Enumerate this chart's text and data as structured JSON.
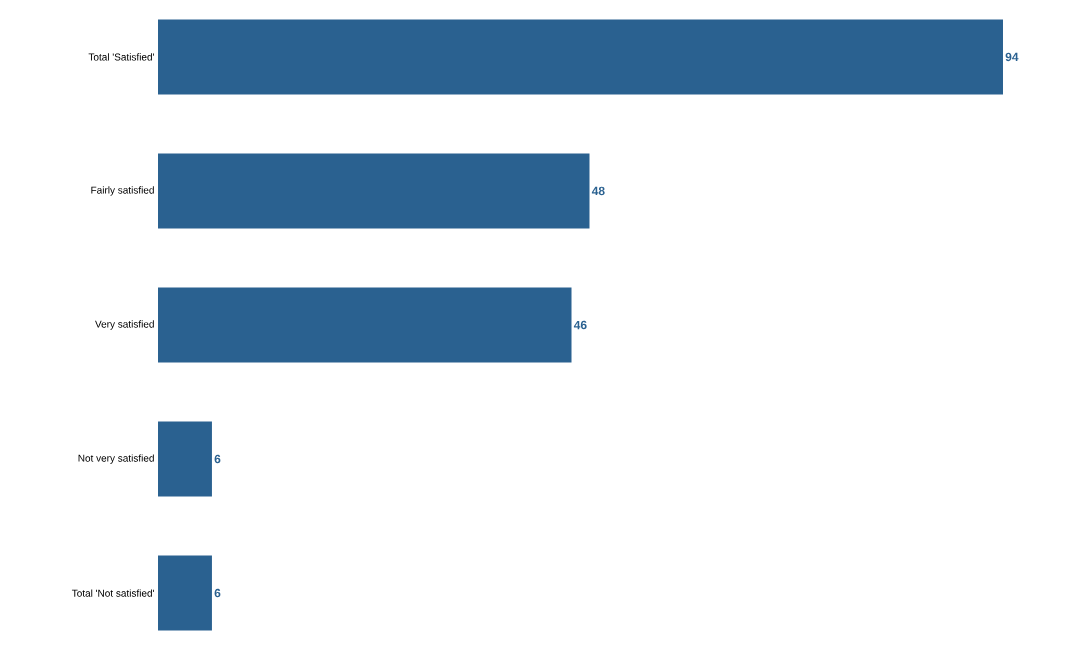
{
  "chart_data": {
    "type": "bar",
    "orientation": "horizontal",
    "categories": [
      "Total 'Satisfied'",
      "Fairly satisfied",
      "Very satisfied",
      "Not very satisfied",
      "Total 'Not satisfied'"
    ],
    "values": [
      94,
      48,
      46,
      6,
      6
    ],
    "color": "#2a6190",
    "data_labels": true
  }
}
